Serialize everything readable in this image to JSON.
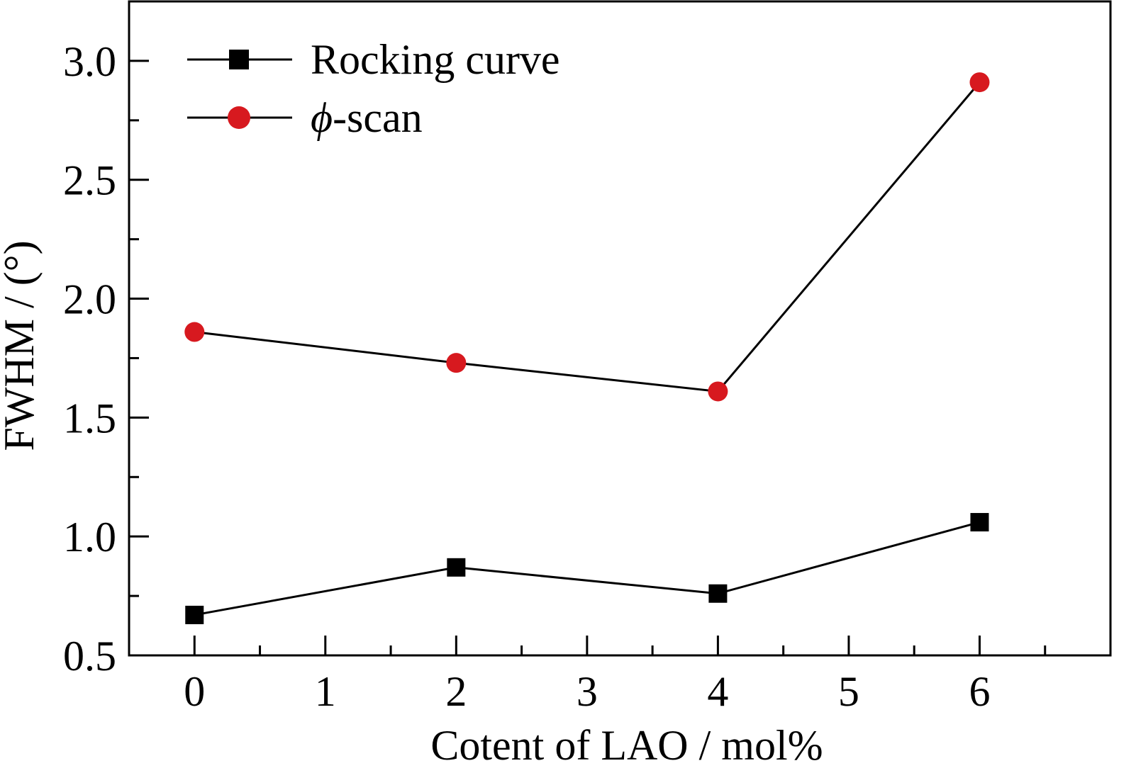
{
  "chart_data": {
    "type": "line",
    "xlabel": "Cotent of LAO / mol%",
    "ylabel": "FWHM / (°)",
    "xlim": [
      -0.5,
      7.0
    ],
    "ylim": [
      0.5,
      3.25
    ],
    "x_ticks": [
      0,
      1,
      2,
      3,
      4,
      5,
      6
    ],
    "x_tick_labels": [
      "0",
      "1",
      "2",
      "3",
      "4",
      "5",
      "6"
    ],
    "x_minor_ticks": [
      0.5,
      1.5,
      2.5,
      3.5,
      4.5,
      5.5,
      6.5
    ],
    "y_ticks": [
      0.5,
      1.0,
      1.5,
      2.0,
      2.5,
      3.0
    ],
    "y_tick_labels": [
      "0.5",
      "1.0",
      "1.5",
      "2.0",
      "2.5",
      "3.0"
    ],
    "y_minor_ticks": [
      0.75,
      1.25,
      1.75,
      2.25,
      2.75
    ],
    "grid": false,
    "legend_position": "top-left",
    "series": [
      {
        "name": "Rocking curve",
        "marker": "square",
        "color": "#000000",
        "x": [
          0,
          2,
          4,
          6
        ],
        "y": [
          0.67,
          0.87,
          0.76,
          1.06
        ]
      },
      {
        "name": "ϕ-scan",
        "name_symbol": "ϕ",
        "name_suffix": "-scan",
        "marker": "circle",
        "color": "#d7191f",
        "x": [
          0,
          2,
          4,
          6
        ],
        "y": [
          1.86,
          1.73,
          1.61,
          2.91
        ]
      }
    ]
  }
}
